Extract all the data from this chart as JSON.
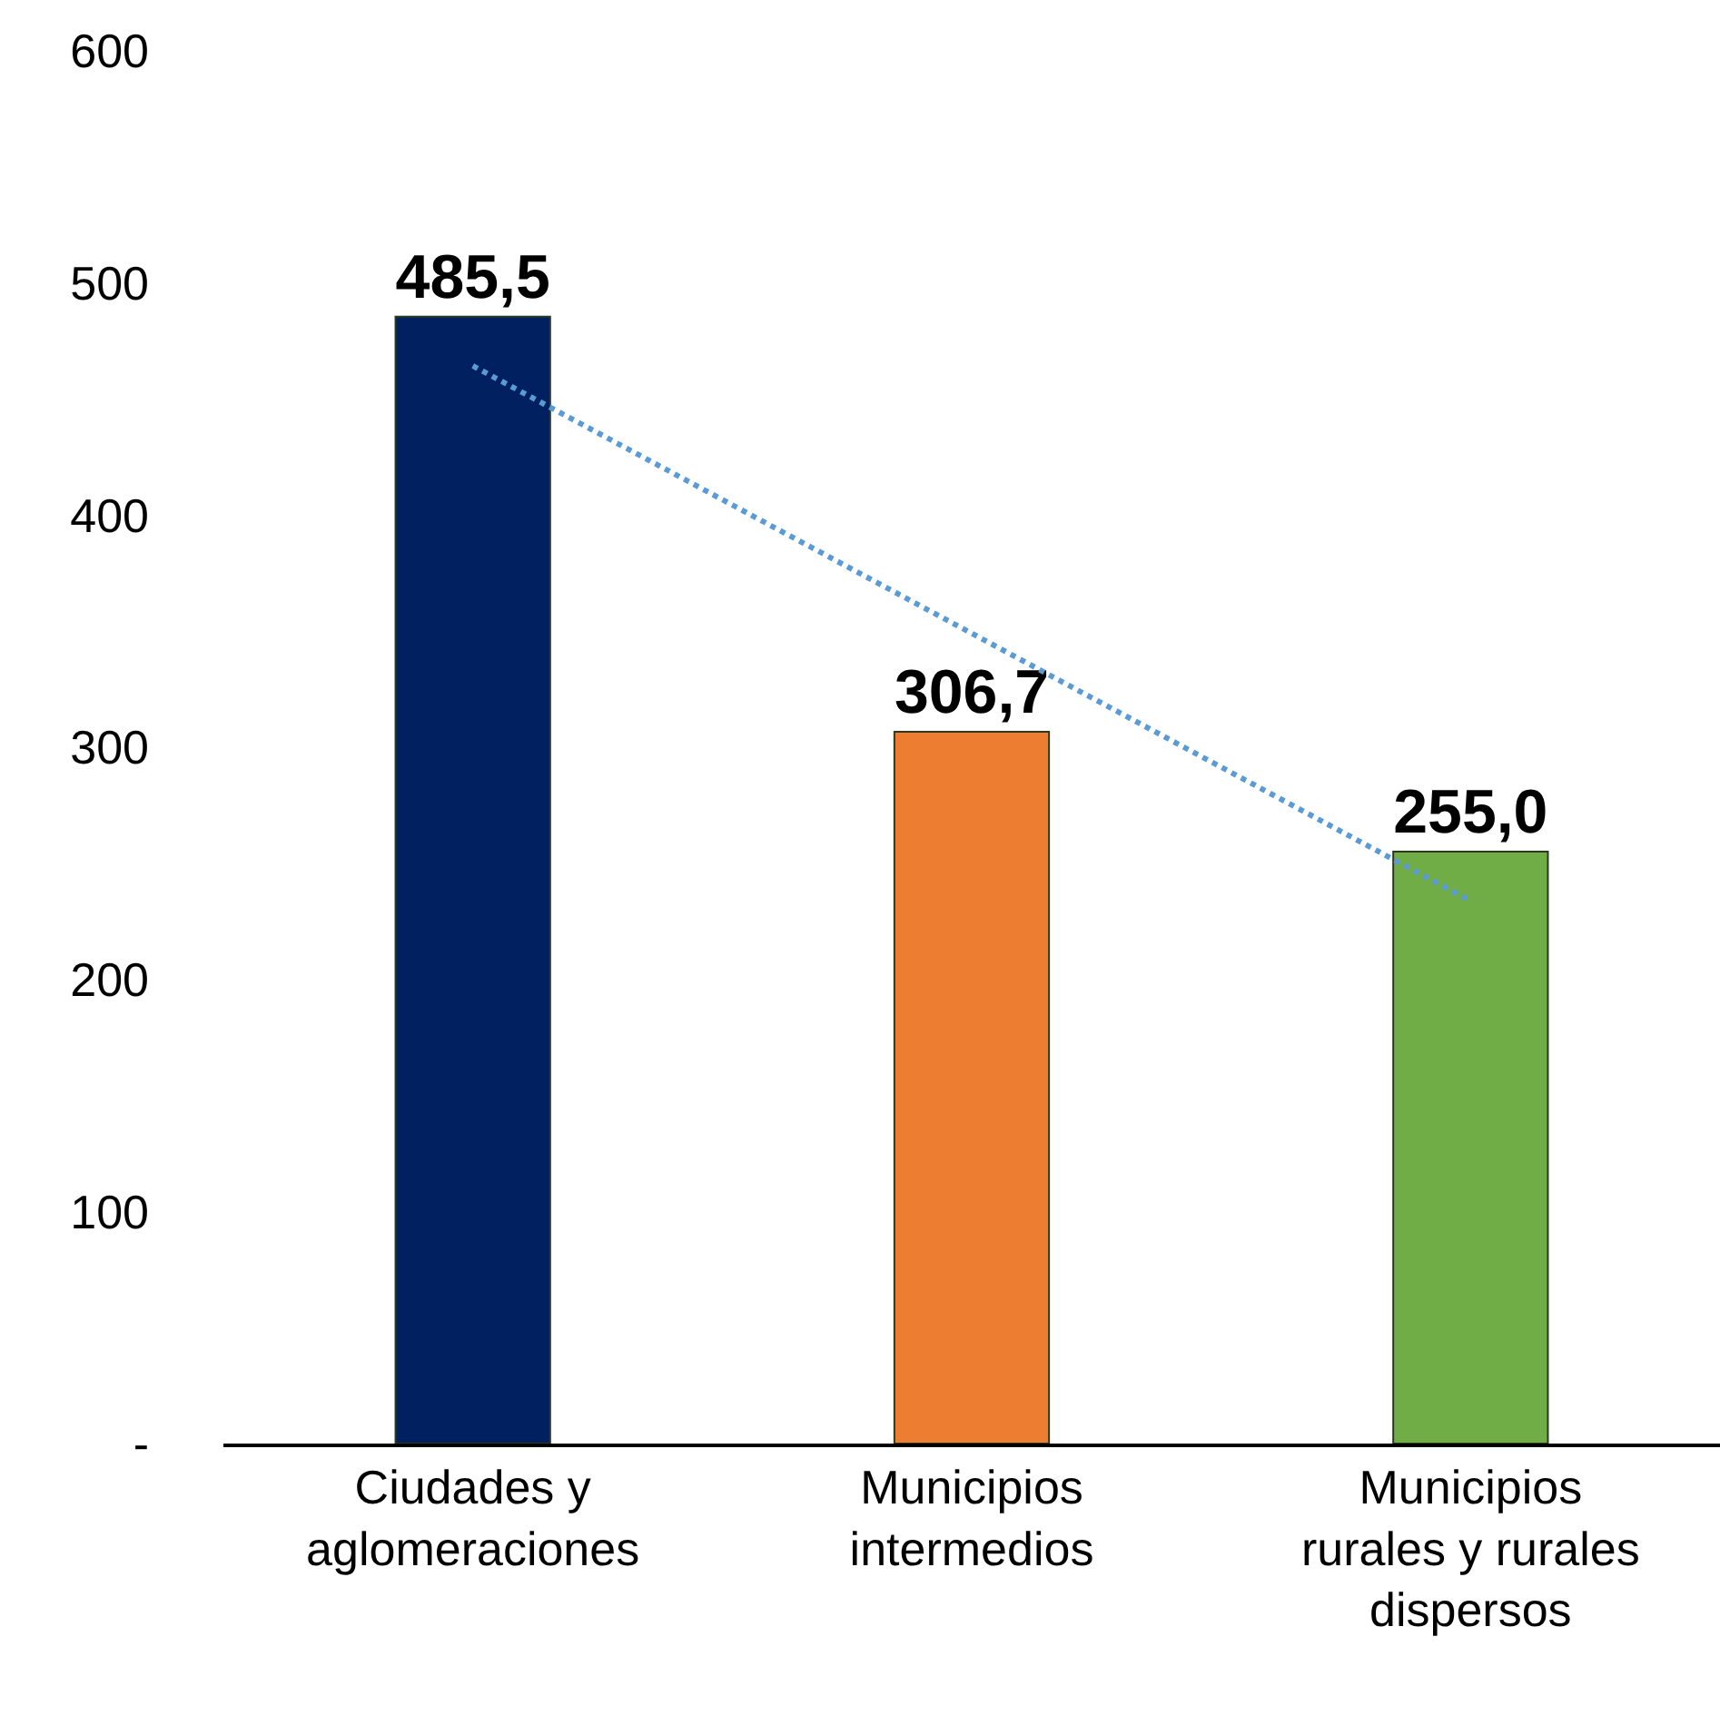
{
  "chart_data": {
    "type": "bar",
    "categories": [
      "Ciudades y aglomeraciones",
      "Municipios intermedios",
      "Municipios rurales y rurales dispersos"
    ],
    "ylim": [
      0,
      600
    ],
    "yticks": [
      {
        "value": 0,
        "label": "-"
      },
      100,
      200,
      300,
      400,
      500,
      600
    ],
    "grid": false,
    "series": [
      {
        "colors": [
          "#002060",
          "#ed7d31",
          "#70ad47"
        ],
        "values": [
          485.5,
          306.7,
          255.0
        ],
        "value_labels": [
          "485,5",
          "306,7",
          "255,0"
        ]
      },
      {
        "type": "line",
        "color": "#5b9bd5",
        "line_style": "dotted",
        "marker": "none",
        "x": [
          "Ciudades y aglomeraciones",
          "Municipios rurales y rurales dispersos"
        ],
        "values": [
          464.3,
          233.8
        ]
      }
    ]
  }
}
